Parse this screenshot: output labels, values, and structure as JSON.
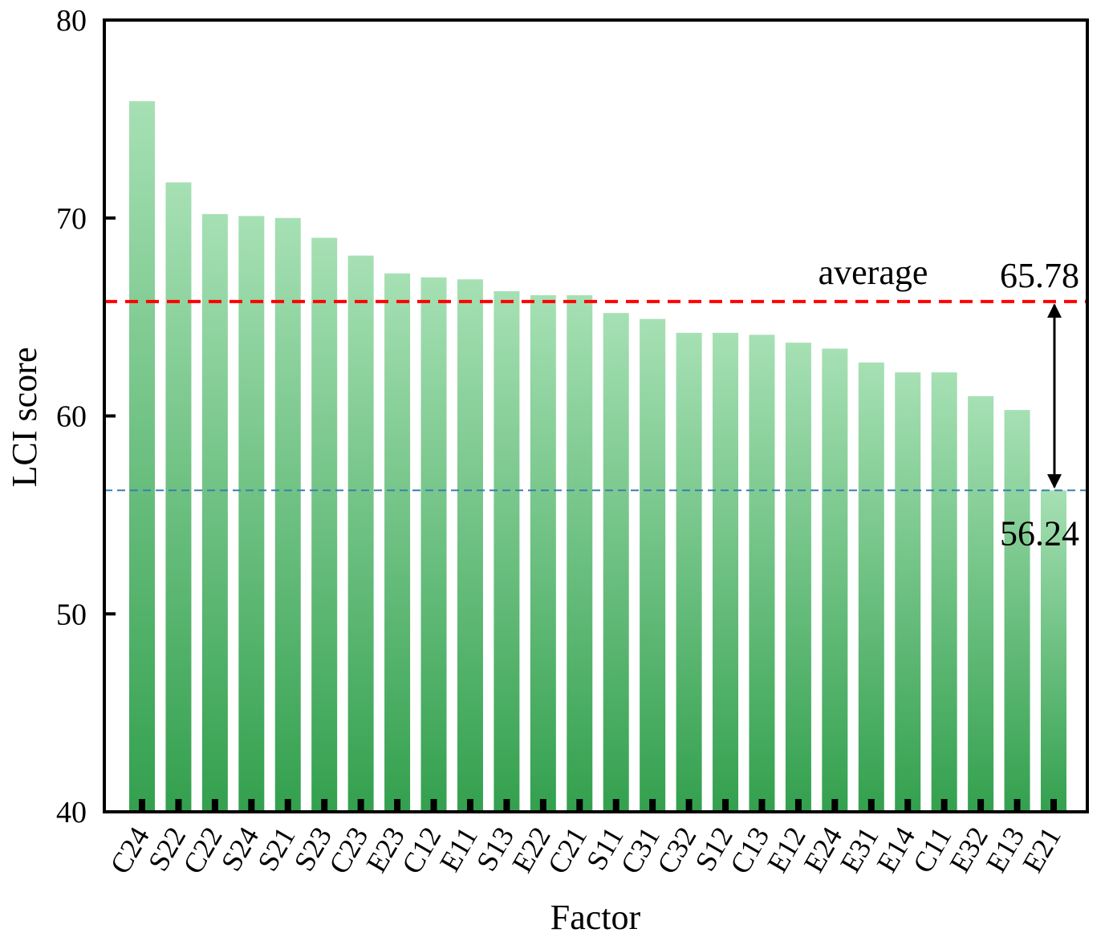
{
  "chart_data": {
    "type": "bar",
    "x_label": "Factor",
    "y_label": "LCI score",
    "categories": [
      "C24",
      "S22",
      "C22",
      "S24",
      "S21",
      "S23",
      "C23",
      "E23",
      "C12",
      "E11",
      "S13",
      "E22",
      "C21",
      "S11",
      "C31",
      "C32",
      "S12",
      "C13",
      "E12",
      "E24",
      "E31",
      "E14",
      "C11",
      "E32",
      "E13",
      "E21"
    ],
    "values": [
      75.9,
      71.8,
      70.2,
      70.1,
      70.0,
      69.0,
      68.1,
      67.2,
      67.0,
      66.9,
      66.3,
      66.1,
      66.1,
      65.2,
      64.9,
      64.2,
      64.2,
      64.1,
      63.7,
      63.4,
      62.7,
      62.2,
      62.2,
      61.0,
      60.3,
      56.24
    ],
    "colors": [
      "#a6e0b4",
      "#33a04e"
    ],
    "ylim": [
      40,
      80
    ],
    "yticks": [
      40,
      50,
      60,
      70,
      80
    ],
    "reference_lines": [
      {
        "value": 65.78,
        "color": "#ff0000",
        "label": "average"
      },
      {
        "value": 56.24,
        "color": "#3a7fb0"
      }
    ]
  }
}
